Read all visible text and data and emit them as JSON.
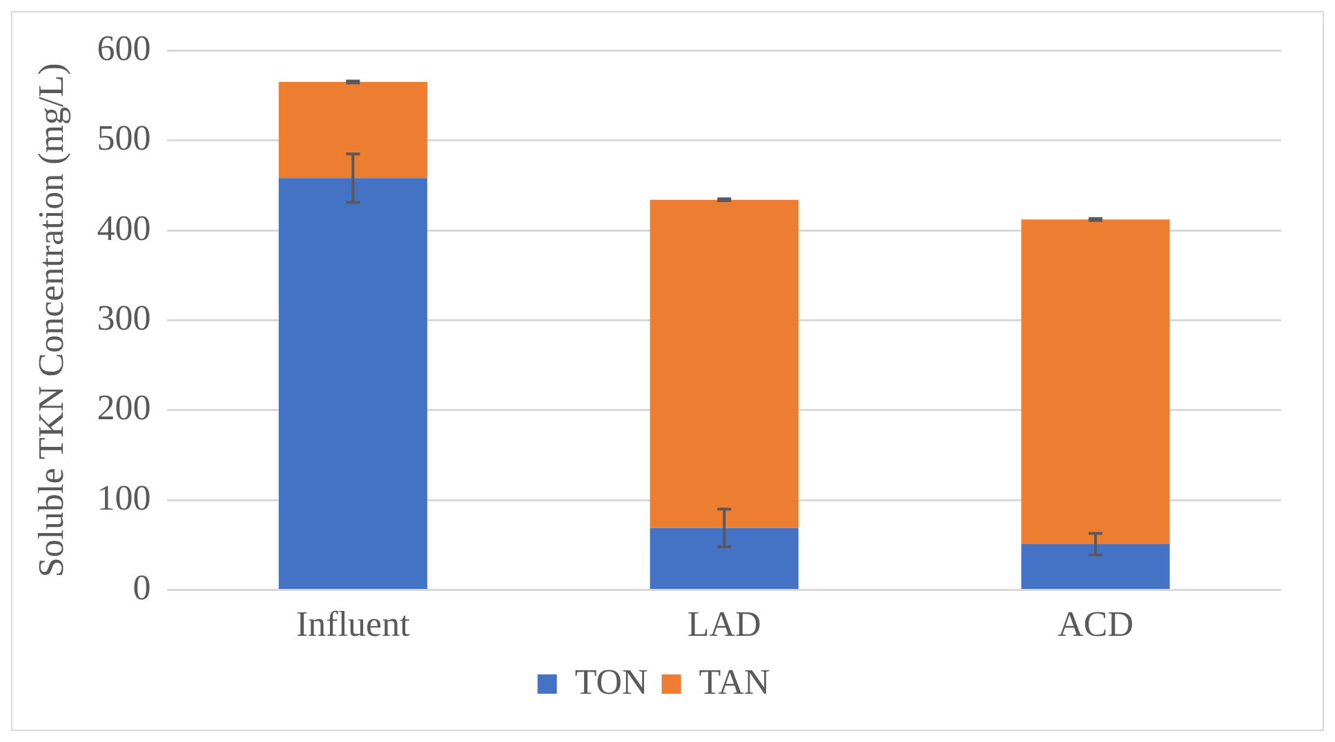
{
  "chart_data": {
    "type": "bar",
    "stacked": true,
    "ylabel": "Soluble TKN Concentration (mg/L)",
    "categories": [
      "Influent",
      "LAD",
      "ACD"
    ],
    "series": [
      {
        "name": "TON",
        "color": "#4472c4",
        "values": [
          458,
          69,
          51
        ],
        "errors": [
          27,
          21,
          12
        ]
      },
      {
        "name": "TAN",
        "color": "#ed7d31",
        "values": [
          107,
          365,
          361
        ],
        "errors": [
          1,
          1,
          1
        ]
      }
    ],
    "ylim": [
      0,
      600
    ],
    "yticks": [
      0,
      100,
      200,
      300,
      400,
      500,
      600
    ],
    "grid": "y",
    "legend": "bottom"
  }
}
